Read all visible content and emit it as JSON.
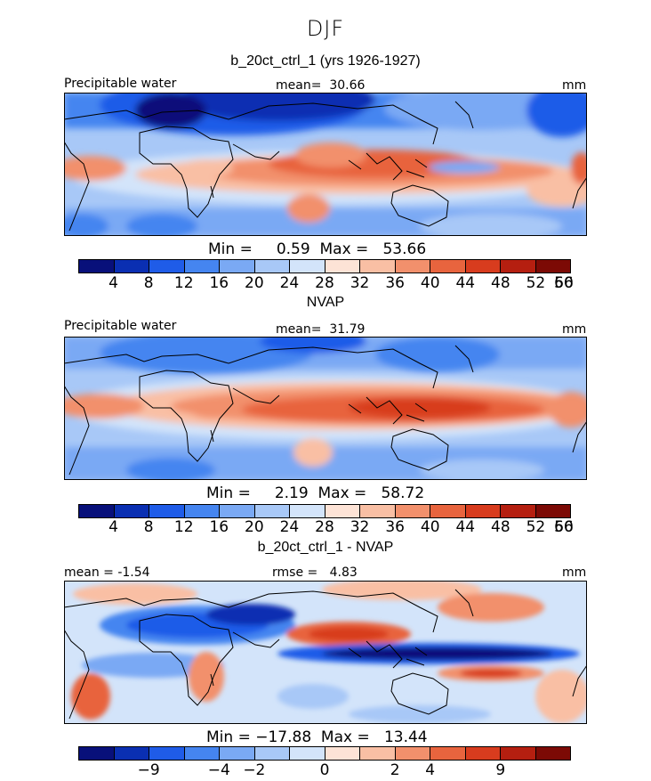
{
  "season": "DJF",
  "colors": [
    "#08107a",
    "#0a2fb2",
    "#1f5ce8",
    "#4585f0",
    "#7aa9f4",
    "#a8c8f7",
    "#d3e4fa",
    "#fde3d6",
    "#f9bfa4",
    "#f2906c",
    "#e8643e",
    "#d83c1e",
    "#b51f10",
    "#7c0a05"
  ],
  "panel1": {
    "title": "b_20ct_ctrl_1 (yrs 1926-1927)",
    "variable": "Precipitable water",
    "mean_label": "mean=  30.66",
    "units": "mm",
    "stats": "Min =     0.59  Max =   53.66",
    "ticks": [
      "4",
      "8",
      "12",
      "16",
      "20",
      "24",
      "28",
      "32",
      "36",
      "40",
      "44",
      "48",
      "52",
      "56",
      "60"
    ]
  },
  "panel2": {
    "title": "NVAP",
    "variable": "Precipitable water",
    "mean_label": "mean=  31.79",
    "units": "mm",
    "stats": "Min =     2.19  Max =   58.72",
    "ticks": [
      "4",
      "8",
      "12",
      "16",
      "20",
      "24",
      "28",
      "32",
      "36",
      "40",
      "44",
      "48",
      "52",
      "56",
      "60"
    ]
  },
  "panel3": {
    "title": "b_20ct_ctrl_1 - NVAP",
    "mean_label": "mean = -1.54",
    "rmse_label": "rmse =   4.83",
    "units": "mm",
    "stats": "Min = −17.88  Max =   13.44",
    "ticks": [
      "−9",
      "−4",
      "−2",
      "0",
      "2",
      "4",
      "9"
    ]
  }
}
